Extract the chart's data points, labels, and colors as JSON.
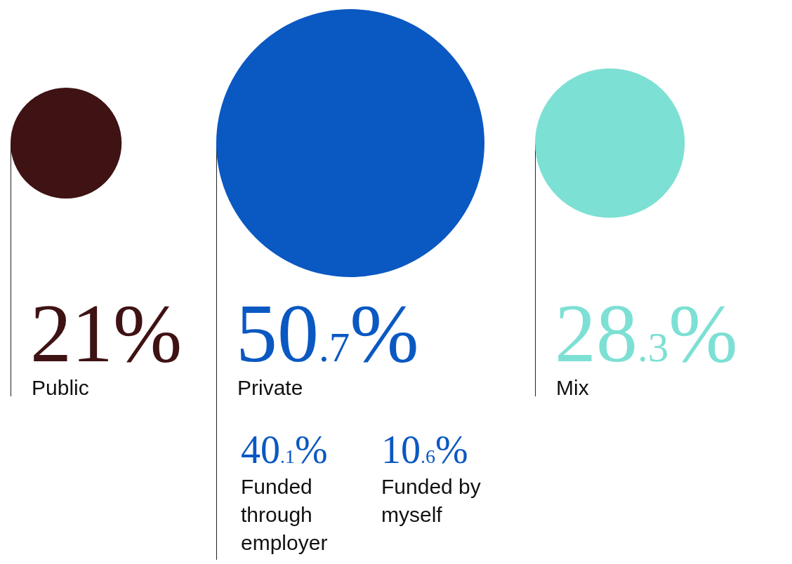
{
  "chart_data": {
    "type": "other",
    "categories": [
      "Public",
      "Private",
      "Mix"
    ],
    "values": [
      21,
      50.7,
      28.3
    ],
    "value_labels": [
      "21%",
      "50.7%",
      "28.3%"
    ],
    "colors": [
      "#3f1214",
      "#0a58c2",
      "#7de0d4"
    ],
    "annotations": [
      "40.1%",
      "Funded through employer",
      "10.6%",
      "Funded by myself"
    ]
  }
}
